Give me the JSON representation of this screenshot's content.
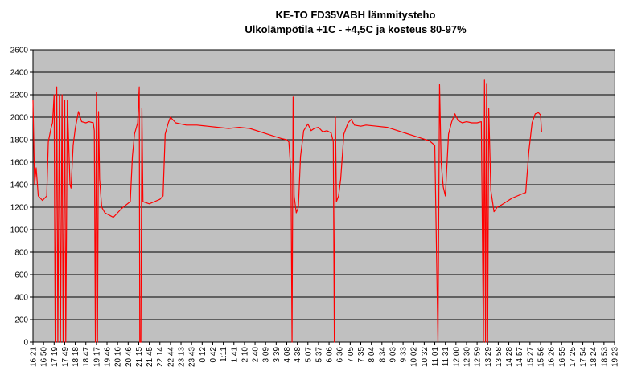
{
  "chart_data": {
    "type": "line",
    "title": "KE-TO FD35VABH lämmitysteho",
    "subtitle": "Ulkolämpötila  +1C - +4,5C ja kosteus 80-97%",
    "xlabel": "",
    "ylabel": "",
    "ylim": [
      0,
      2600
    ],
    "yticks": [
      0,
      200,
      400,
      600,
      800,
      1000,
      1200,
      1400,
      1600,
      1800,
      2000,
      2200,
      2400,
      2600
    ],
    "grid": true,
    "legend": "none",
    "plot_background": "#c0c0c0",
    "series_color": "#ff0000",
    "categories": [
      "16:21",
      "16:50",
      "17:19",
      "17:49",
      "18:18",
      "18:47",
      "19:17",
      "19:46",
      "20:16",
      "20:46",
      "21:15",
      "21:45",
      "22:14",
      "22:44",
      "23:13",
      "23:43",
      "0:12",
      "0:42",
      "1:11",
      "1:41",
      "2:10",
      "2:40",
      "3:09",
      "3:39",
      "4:08",
      "4:38",
      "5:07",
      "5:37",
      "6:06",
      "6:36",
      "7:05",
      "7:35",
      "8:04",
      "8:34",
      "9:03",
      "9:33",
      "10:02",
      "10:32",
      "11:01",
      "11:31",
      "12:00",
      "12:30",
      "12:59",
      "13:29",
      "13:58",
      "14:28",
      "14:57",
      "15:27",
      "15:56",
      "16:26",
      "16:55",
      "17:25",
      "17:54",
      "18:24",
      "18:53",
      "19:23"
    ],
    "series": [
      {
        "name": "",
        "points": [
          [
            0.0,
            2150
          ],
          [
            0.15,
            1400
          ],
          [
            0.3,
            1550
          ],
          [
            0.5,
            1300
          ],
          [
            0.9,
            1260
          ],
          [
            1.3,
            1300
          ],
          [
            1.45,
            1780
          ],
          [
            1.7,
            1900
          ],
          [
            1.85,
            1950
          ],
          [
            2.0,
            2200
          ],
          [
            2.1,
            0
          ],
          [
            2.25,
            2270
          ],
          [
            2.35,
            0
          ],
          [
            2.5,
            2200
          ],
          [
            2.6,
            0
          ],
          [
            2.75,
            2200
          ],
          [
            2.85,
            0
          ],
          [
            3.0,
            2150
          ],
          [
            3.1,
            0
          ],
          [
            3.25,
            2150
          ],
          [
            3.5,
            1400
          ],
          [
            3.6,
            1370
          ],
          [
            3.8,
            1750
          ],
          [
            4.0,
            1900
          ],
          [
            4.3,
            2050
          ],
          [
            4.6,
            1960
          ],
          [
            5.0,
            1950
          ],
          [
            5.3,
            1960
          ],
          [
            5.7,
            1950
          ],
          [
            5.8,
            1880
          ],
          [
            5.9,
            0
          ],
          [
            6.0,
            2220
          ],
          [
            6.1,
            0
          ],
          [
            6.2,
            2050
          ],
          [
            6.3,
            1450
          ],
          [
            6.5,
            1200
          ],
          [
            6.8,
            1150
          ],
          [
            7.2,
            1130
          ],
          [
            7.6,
            1110
          ],
          [
            8.0,
            1150
          ],
          [
            8.4,
            1190
          ],
          [
            8.8,
            1220
          ],
          [
            9.2,
            1250
          ],
          [
            9.4,
            1650
          ],
          [
            9.6,
            1850
          ],
          [
            9.9,
            1950
          ],
          [
            10.05,
            2270
          ],
          [
            10.1,
            0
          ],
          [
            10.2,
            0
          ],
          [
            10.3,
            2080
          ],
          [
            10.4,
            1250
          ],
          [
            10.7,
            1240
          ],
          [
            11.0,
            1230
          ],
          [
            11.5,
            1250
          ],
          [
            12.0,
            1270
          ],
          [
            12.3,
            1300
          ],
          [
            12.5,
            1850
          ],
          [
            12.8,
            1950
          ],
          [
            13.0,
            2000
          ],
          [
            13.5,
            1950
          ],
          [
            14.0,
            1940
          ],
          [
            14.5,
            1930
          ],
          [
            15.5,
            1930
          ],
          [
            16.5,
            1920
          ],
          [
            17.5,
            1910
          ],
          [
            18.5,
            1900
          ],
          [
            19.5,
            1910
          ],
          [
            20.5,
            1900
          ],
          [
            21.5,
            1870
          ],
          [
            22.5,
            1840
          ],
          [
            23.5,
            1810
          ],
          [
            24.0,
            1800
          ],
          [
            24.2,
            1780
          ],
          [
            24.4,
            1500
          ],
          [
            24.5,
            0
          ],
          [
            24.6,
            2180
          ],
          [
            24.7,
            1300
          ],
          [
            24.9,
            1150
          ],
          [
            25.1,
            1200
          ],
          [
            25.3,
            1650
          ],
          [
            25.6,
            1880
          ],
          [
            26.0,
            1940
          ],
          [
            26.3,
            1880
          ],
          [
            26.6,
            1900
          ],
          [
            27.0,
            1910
          ],
          [
            27.4,
            1870
          ],
          [
            27.8,
            1880
          ],
          [
            28.2,
            1860
          ],
          [
            28.4,
            1780
          ],
          [
            28.5,
            0
          ],
          [
            28.6,
            2000
          ],
          [
            28.7,
            1250
          ],
          [
            28.9,
            1300
          ],
          [
            29.1,
            1450
          ],
          [
            29.4,
            1850
          ],
          [
            29.8,
            1950
          ],
          [
            30.1,
            1980
          ],
          [
            30.4,
            1930
          ],
          [
            31.0,
            1920
          ],
          [
            31.5,
            1930
          ],
          [
            32.5,
            1920
          ],
          [
            33.5,
            1910
          ],
          [
            34.5,
            1880
          ],
          [
            35.5,
            1850
          ],
          [
            36.5,
            1820
          ],
          [
            37.5,
            1790
          ],
          [
            38.0,
            1750
          ],
          [
            38.3,
            0
          ],
          [
            38.45,
            2290
          ],
          [
            38.6,
            1600
          ],
          [
            38.8,
            1380
          ],
          [
            39.0,
            1300
          ],
          [
            39.3,
            1850
          ],
          [
            39.6,
            1960
          ],
          [
            39.9,
            2030
          ],
          [
            40.2,
            1970
          ],
          [
            40.6,
            1950
          ],
          [
            41.0,
            1960
          ],
          [
            41.5,
            1950
          ],
          [
            42.0,
            1950
          ],
          [
            42.4,
            1960
          ],
          [
            42.6,
            0
          ],
          [
            42.7,
            2330
          ],
          [
            42.8,
            0
          ],
          [
            42.9,
            2300
          ],
          [
            43.0,
            0
          ],
          [
            43.1,
            2080
          ],
          [
            43.3,
            1350
          ],
          [
            43.6,
            1160
          ],
          [
            43.9,
            1200
          ],
          [
            44.3,
            1220
          ],
          [
            44.8,
            1250
          ],
          [
            45.3,
            1280
          ],
          [
            45.8,
            1300
          ],
          [
            46.3,
            1320
          ],
          [
            46.6,
            1330
          ],
          [
            46.9,
            1700
          ],
          [
            47.2,
            1950
          ],
          [
            47.5,
            2030
          ],
          [
            47.8,
            2040
          ],
          [
            48.0,
            2020
          ],
          [
            48.1,
            1870
          ]
        ]
      }
    ]
  }
}
